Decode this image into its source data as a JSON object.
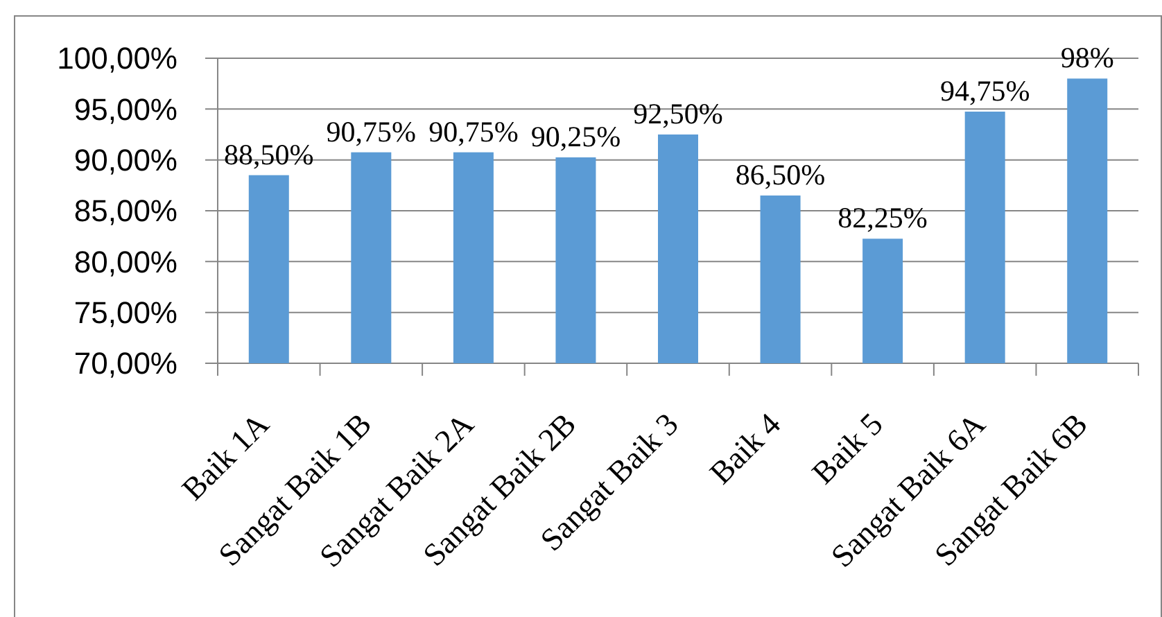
{
  "chart_data": {
    "type": "bar",
    "categories": [
      "Baik 1A",
      "Sangat Baik 1B",
      "Sangat Baik 2A",
      "Sangat Baik 2B",
      "Sangat Baik 3",
      "Baik 4",
      "Baik 5",
      "Sangat Baik 6A",
      "Sangat Baik 6B"
    ],
    "values": [
      88.5,
      90.75,
      90.75,
      90.25,
      92.5,
      86.5,
      82.25,
      94.75,
      98
    ],
    "value_labels": [
      "88,50%",
      "90,75%",
      "90,75%",
      "90,25%",
      "92,50%",
      "86,50%",
      "82,25%",
      "94,75%",
      "98%"
    ],
    "color": "#5b9bd5",
    "ylim": [
      70,
      100
    ],
    "yticks": [
      {
        "value": 70,
        "label": "70,00%"
      },
      {
        "value": 75,
        "label": "75,00%"
      },
      {
        "value": 80,
        "label": "80,00%"
      },
      {
        "value": 85,
        "label": "85,00%"
      },
      {
        "value": 90,
        "label": "90,00%"
      },
      {
        "value": 95,
        "label": "95,00%"
      },
      {
        "value": 100,
        "label": "100,00%"
      }
    ],
    "grid": "y"
  }
}
